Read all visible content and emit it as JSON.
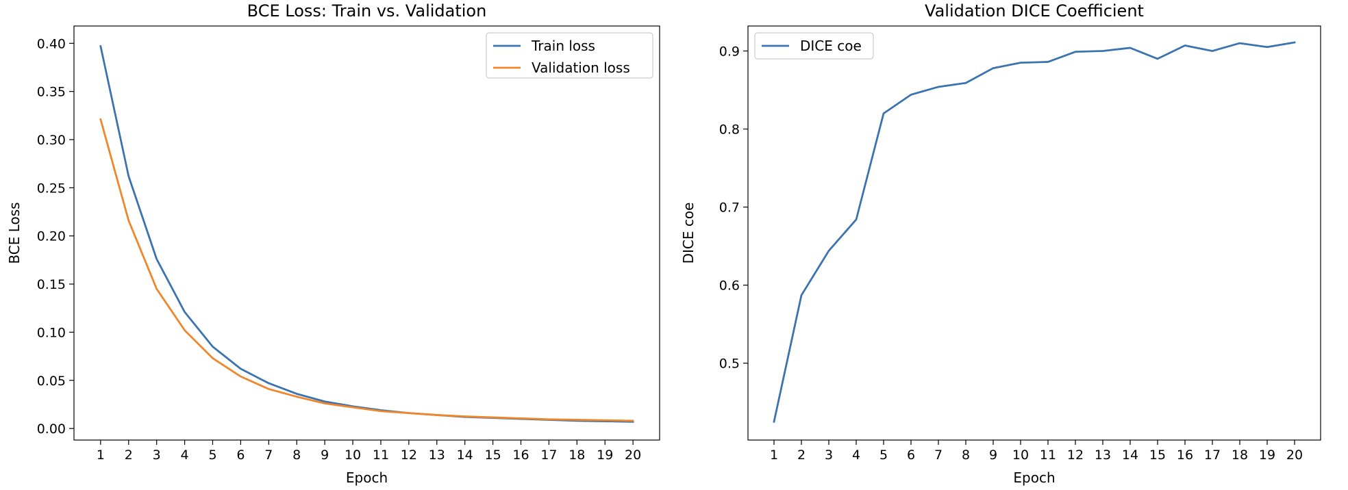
{
  "chart_data": [
    {
      "type": "line",
      "title": "BCE Loss: Train vs. Validation",
      "xlabel": "Epoch",
      "ylabel": "BCE Loss",
      "x": [
        1,
        2,
        3,
        4,
        5,
        6,
        7,
        8,
        9,
        10,
        11,
        12,
        13,
        14,
        15,
        16,
        17,
        18,
        19,
        20
      ],
      "ylim": [
        -0.012,
        0.418
      ],
      "yticks": [
        0.0,
        0.05,
        0.1,
        0.15,
        0.2,
        0.25,
        0.3,
        0.35,
        0.4
      ],
      "ytick_labels": [
        "0.00",
        "0.05",
        "0.10",
        "0.15",
        "0.20",
        "0.25",
        "0.30",
        "0.35",
        "0.40"
      ],
      "legend_position": "top-right",
      "grid": false,
      "series": [
        {
          "name": "Train loss",
          "color": "#3a73b0",
          "values": [
            0.397,
            0.262,
            0.176,
            0.121,
            0.085,
            0.062,
            0.047,
            0.036,
            0.028,
            0.023,
            0.019,
            0.016,
            0.014,
            0.012,
            0.011,
            0.01,
            0.009,
            0.008,
            0.0075,
            0.007
          ]
        },
        {
          "name": "Validation loss",
          "color": "#f0862a",
          "values": [
            0.321,
            0.216,
            0.145,
            0.102,
            0.073,
            0.054,
            0.041,
            0.033,
            0.026,
            0.022,
            0.018,
            0.016,
            0.014,
            0.0125,
            0.0115,
            0.0105,
            0.0095,
            0.009,
            0.0085,
            0.008
          ]
        }
      ]
    },
    {
      "type": "line",
      "title": "Validation DICE Coefficient",
      "xlabel": "Epoch",
      "ylabel": "DICE coe",
      "x": [
        1,
        2,
        3,
        4,
        5,
        6,
        7,
        8,
        9,
        10,
        11,
        12,
        13,
        14,
        15,
        16,
        17,
        18,
        19,
        20
      ],
      "ylim": [
        0.4015,
        0.932
      ],
      "yticks": [
        0.5,
        0.6,
        0.7,
        0.8,
        0.9
      ],
      "ytick_labels": [
        "0.5",
        "0.6",
        "0.7",
        "0.8",
        "0.9"
      ],
      "legend_position": "top-left",
      "grid": false,
      "series": [
        {
          "name": "DICE coe",
          "color": "#3a73b0",
          "values": [
            0.425,
            0.587,
            0.644,
            0.684,
            0.82,
            0.844,
            0.854,
            0.859,
            0.878,
            0.885,
            0.886,
            0.899,
            0.9,
            0.904,
            0.89,
            0.907,
            0.9,
            0.91,
            0.905,
            0.911
          ]
        }
      ]
    }
  ]
}
